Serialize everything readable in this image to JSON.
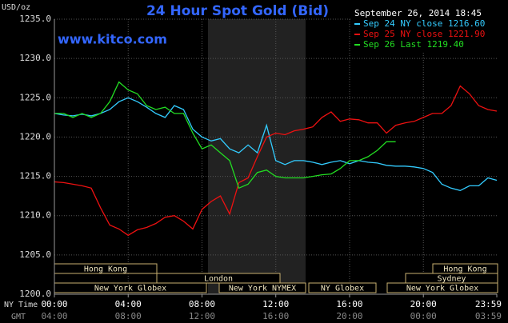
{
  "chart_data": {
    "type": "line",
    "title": "24 Hour Spot Gold (Bid)",
    "website": "www.kitco.com",
    "unit_label": "USD/oz",
    "timestamp": "September 26, 2014 18:45",
    "x_axis_label": "NY Time",
    "x2_axis_label": "GMT",
    "x": [
      0,
      0.5,
      1,
      1.5,
      2,
      2.5,
      3,
      3.5,
      4,
      4.5,
      5,
      5.5,
      6,
      6.5,
      7,
      7.5,
      8,
      8.5,
      9,
      9.5,
      10,
      10.5,
      11,
      11.5,
      12,
      12.5,
      13,
      13.5,
      14,
      14.5,
      15,
      15.5,
      16,
      16.5,
      17,
      17.5,
      18,
      18.5,
      19,
      19.5,
      20,
      20.5,
      21,
      21.5,
      22,
      22.5,
      23,
      23.5,
      23.98
    ],
    "series": [
      {
        "name": "Sep 24 NY close 1216.60",
        "color": "#33ccff",
        "values": [
          1223,
          1222.8,
          1222.7,
          1222.9,
          1222.7,
          1223,
          1223.5,
          1224.5,
          1225,
          1224.5,
          1223.8,
          1223,
          1222.5,
          1224,
          1223.5,
          1221,
          1220,
          1219.5,
          1219.8,
          1218.5,
          1218,
          1219,
          1218,
          1221.5,
          1217,
          1216.5,
          1217,
          1217,
          1216.8,
          1216.5,
          1216.8,
          1217,
          1216.6,
          1217,
          1216.8,
          1216.7,
          1216.4,
          1216.3,
          1216.3,
          1216.2,
          1216,
          1215.5,
          1214,
          1213.5,
          1213.2,
          1213.8,
          1213.8,
          1214.8,
          1214.5
        ]
      },
      {
        "name": "Sep 25 NY close 1221.90",
        "color": "#ee1111",
        "values": [
          1214.3,
          1214.2,
          1214,
          1213.8,
          1213.5,
          1211,
          1208.8,
          1208.3,
          1207.5,
          1208.2,
          1208.5,
          1209,
          1209.8,
          1210,
          1209.3,
          1208.3,
          1210.8,
          1211.8,
          1212.5,
          1210.2,
          1214.2,
          1214.8,
          1217.5,
          1220,
          1220.5,
          1220.3,
          1220.8,
          1221,
          1221.3,
          1222.5,
          1223.2,
          1222,
          1222.3,
          1222.2,
          1221.8,
          1221.8,
          1220.5,
          1221.5,
          1221.8,
          1222,
          1222.5,
          1223,
          1223,
          1224,
          1226.5,
          1225.5,
          1224,
          1223.5,
          1223.3
        ]
      },
      {
        "name": "Sep 26 Last 1219.40",
        "color": "#22dd22",
        "values": [
          1223,
          1223,
          1222.5,
          1223,
          1222.5,
          1223,
          1224.5,
          1227,
          1226,
          1225.5,
          1224,
          1223.5,
          1223.8,
          1223,
          1223,
          1220.5,
          1218.5,
          1219,
          1218,
          1217,
          1213.5,
          1214,
          1215.5,
          1215.8,
          1215,
          1214.8,
          1214.8,
          1214.8,
          1215,
          1215.2,
          1215.3,
          1216,
          1217,
          1217,
          1217.5,
          1218.3,
          1219.4,
          1219.4,
          null,
          null,
          null,
          null,
          null,
          null,
          null,
          null,
          null,
          null,
          null
        ]
      }
    ],
    "xlim": [
      0,
      23.98
    ],
    "xticks": [
      {
        "value": 0,
        "label": "00:00"
      },
      {
        "value": 4,
        "label": "04:00"
      },
      {
        "value": 8,
        "label": "08:00"
      },
      {
        "value": 12,
        "label": "12:00"
      },
      {
        "value": 16,
        "label": "16:00"
      },
      {
        "value": 20,
        "label": "20:00"
      },
      {
        "value": 23.98,
        "label": "23:59"
      }
    ],
    "x2ticks": [
      {
        "value": 0,
        "label": "04:00"
      },
      {
        "value": 4,
        "label": "08:00"
      },
      {
        "value": 8,
        "label": "12:00"
      },
      {
        "value": 12,
        "label": "16:00"
      },
      {
        "value": 16,
        "label": "20:00"
      },
      {
        "value": 20,
        "label": "00:00"
      },
      {
        "value": 23.98,
        "label": "03:59"
      }
    ],
    "ylim": [
      1200,
      1235
    ],
    "yticks": [
      {
        "value": 1200,
        "label": "1200.0"
      },
      {
        "value": 1205,
        "label": "1205.0"
      },
      {
        "value": 1210,
        "label": "1210.0"
      },
      {
        "value": 1215,
        "label": "1215.0"
      },
      {
        "value": 1220,
        "label": "1220.0"
      },
      {
        "value": 1225,
        "label": "1225.0"
      },
      {
        "value": 1230,
        "label": "1230.0"
      },
      {
        "value": 1235,
        "label": "1235.0"
      }
    ],
    "grid": true,
    "sessions": [
      "Hong Kong",
      "London",
      "New York Globex",
      "New York NYMEX",
      "NY Globex",
      "New York Globex",
      "Sydney",
      "Hong Kong"
    ]
  }
}
